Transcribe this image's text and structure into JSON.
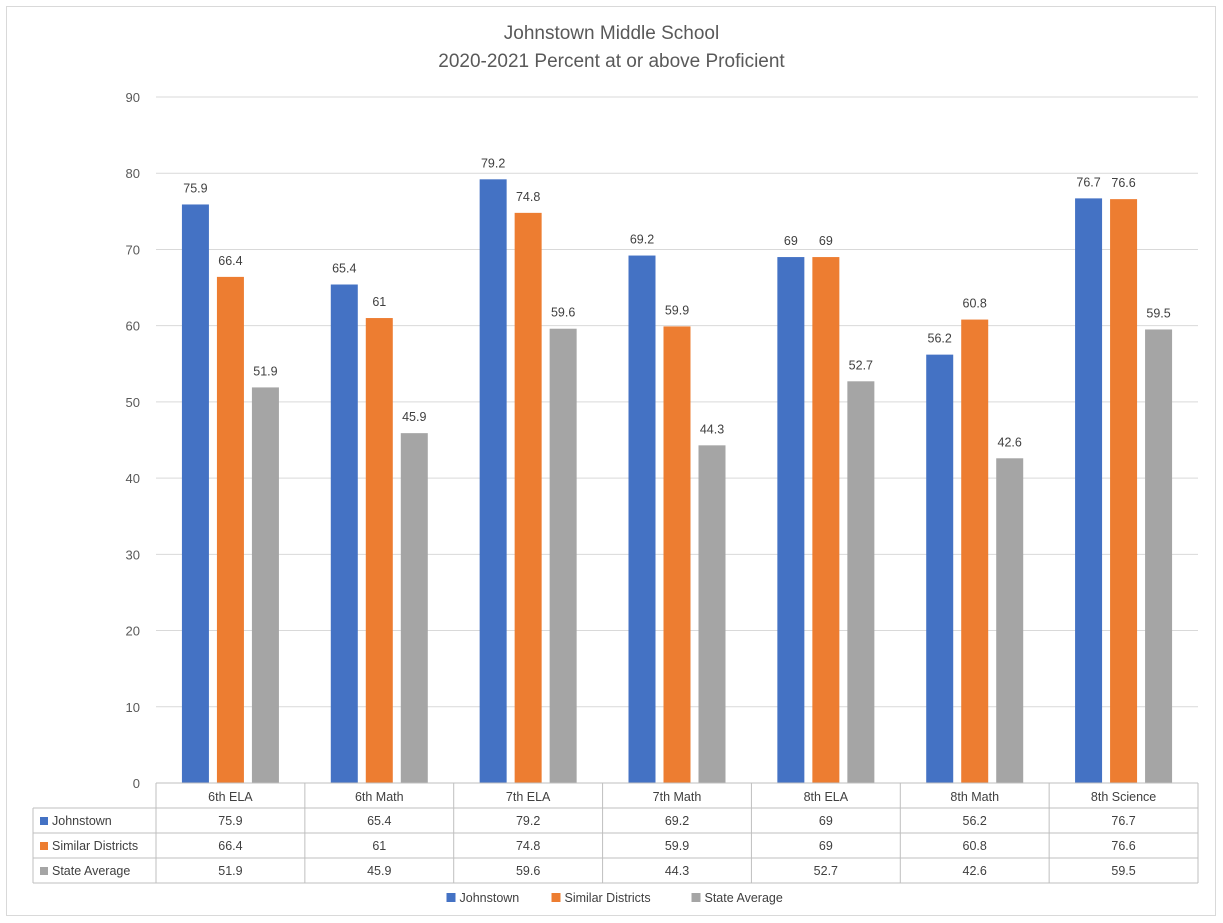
{
  "chart_data": {
    "type": "bar",
    "title": [
      "Johnstown Middle School",
      "2020-2021 Percent at or above Proficient"
    ],
    "categories": [
      "6th ELA",
      "6th Math",
      "7th ELA",
      "7th Math",
      "8th ELA",
      "8th Math",
      "8th Science"
    ],
    "series": [
      {
        "name": "Johnstown",
        "color": "#4472c4",
        "values": [
          75.9,
          65.4,
          79.2,
          69.2,
          69,
          56.2,
          76.7
        ]
      },
      {
        "name": "Similar Districts",
        "color": "#ed7d31",
        "values": [
          66.4,
          61,
          74.8,
          59.9,
          69,
          60.8,
          76.6
        ]
      },
      {
        "name": "State Average",
        "color": "#a5a5a5",
        "values": [
          51.9,
          45.9,
          59.6,
          44.3,
          52.7,
          42.6,
          59.5
        ]
      }
    ],
    "ylim": [
      0,
      90
    ],
    "yticks": [
      0,
      10,
      20,
      30,
      40,
      50,
      60,
      70,
      80,
      90
    ],
    "grid": true,
    "data_table": true,
    "legend_position": "bottom"
  }
}
